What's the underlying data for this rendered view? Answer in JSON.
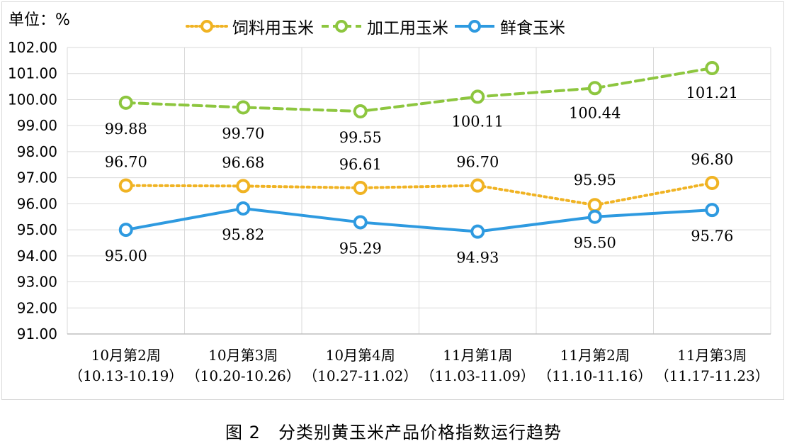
{
  "unit_label": "单位：%",
  "caption": "图 2　分类别黄玉米产品价格指数运行趋势",
  "colors": {
    "feed": "#F0B323",
    "processing": "#8DC63F",
    "fresh": "#2E9AE0",
    "grid": "#d9d9d9",
    "axis": "#bfbfbf"
  },
  "chart_data": {
    "type": "line",
    "title": "",
    "xlabel": "",
    "ylabel": "单位：%",
    "ylim": [
      91.0,
      102.0
    ],
    "y_ticks": [
      "91.00",
      "92.00",
      "93.00",
      "94.00",
      "95.00",
      "96.00",
      "97.00",
      "98.00",
      "99.00",
      "100.00",
      "101.00",
      "102.00"
    ],
    "grid": true,
    "legend_position": "top",
    "categories": [
      {
        "line1": "10月第2周",
        "line2": "（10.13-10.19）"
      },
      {
        "line1": "10月第3周",
        "line2": "（10.20-10.26）"
      },
      {
        "line1": "10月第4周",
        "line2": "（10.27-11.02）"
      },
      {
        "line1": "11月第1周",
        "line2": "（11.03-11.09）"
      },
      {
        "line1": "11月第2周",
        "line2": "（11.10-11.16）"
      },
      {
        "line1": "11月第3周",
        "line2": "（11.17-11.23）"
      }
    ],
    "series": [
      {
        "key": "feed",
        "name": "饲料用玉米",
        "style": "dotted",
        "color": "#F0B323",
        "values": [
          96.7,
          96.68,
          96.61,
          96.7,
          95.95,
          96.8
        ],
        "labels": [
          "96.70",
          "96.68",
          "96.61",
          "96.70",
          "95.95",
          "96.80"
        ]
      },
      {
        "key": "processing",
        "name": "加工用玉米",
        "style": "dashed",
        "color": "#8DC63F",
        "values": [
          99.88,
          99.7,
          99.55,
          100.11,
          100.44,
          101.21
        ],
        "labels": [
          "99.88",
          "99.70",
          "99.55",
          "100.11",
          "100.44",
          "101.21"
        ]
      },
      {
        "key": "fresh",
        "name": "鲜食玉米",
        "style": "solid",
        "color": "#2E9AE0",
        "values": [
          95.0,
          95.82,
          95.29,
          94.93,
          95.5,
          95.76
        ],
        "labels": [
          "95.00",
          "95.82",
          "95.29",
          "94.93",
          "95.50",
          "95.76"
        ]
      }
    ]
  }
}
